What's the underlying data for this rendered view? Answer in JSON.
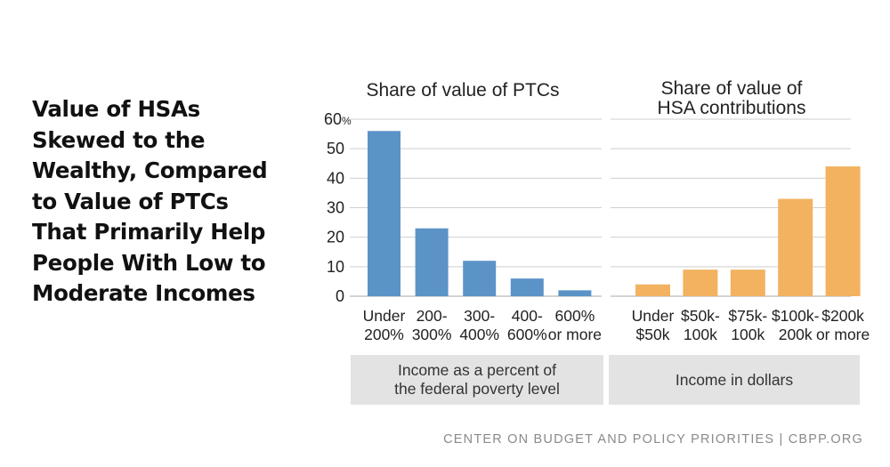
{
  "headline": [
    "Value of HSAs",
    "Skewed to the",
    "Wealthy, Compared",
    "to Value of PTCs",
    "That Primarily Help",
    "People With Low to",
    "Moderate Incomes"
  ],
  "colors": {
    "ptc_bar": "#5b93c7",
    "hsa_bar": "#f2b260"
  },
  "chart_data": [
    {
      "type": "bar",
      "title": "Share of value of PTCs",
      "xlabel": "Income as a percent of\nthe federal poverty level",
      "categories": [
        "Under\n200%",
        "200-\n300%",
        "300-\n400%",
        "400-\n600%",
        "600%\nor more"
      ],
      "values": [
        56,
        23,
        12,
        6,
        2
      ],
      "ylim": [
        0,
        60
      ],
      "yticks": [
        0,
        10,
        20,
        30,
        40,
        50,
        60
      ],
      "ytick_labels": [
        "0",
        "10",
        "20",
        "30",
        "40",
        "50",
        "60"
      ],
      "ytick_unit": "%",
      "grid": true
    },
    {
      "type": "bar",
      "title": "Share of value of\nHSA contributions",
      "xlabel": "Income in dollars",
      "categories": [
        "Under\n$50k",
        "$50k-\n100k",
        "$75k-\n100k",
        "$100k-\n200k",
        "$200k\nor more"
      ],
      "values": [
        4,
        9,
        9,
        33,
        44
      ],
      "ylim": [
        0,
        60
      ],
      "grid": true
    }
  ],
  "source": "CENTER ON BUDGET AND POLICY PRIORITIES | CBPP.ORG"
}
